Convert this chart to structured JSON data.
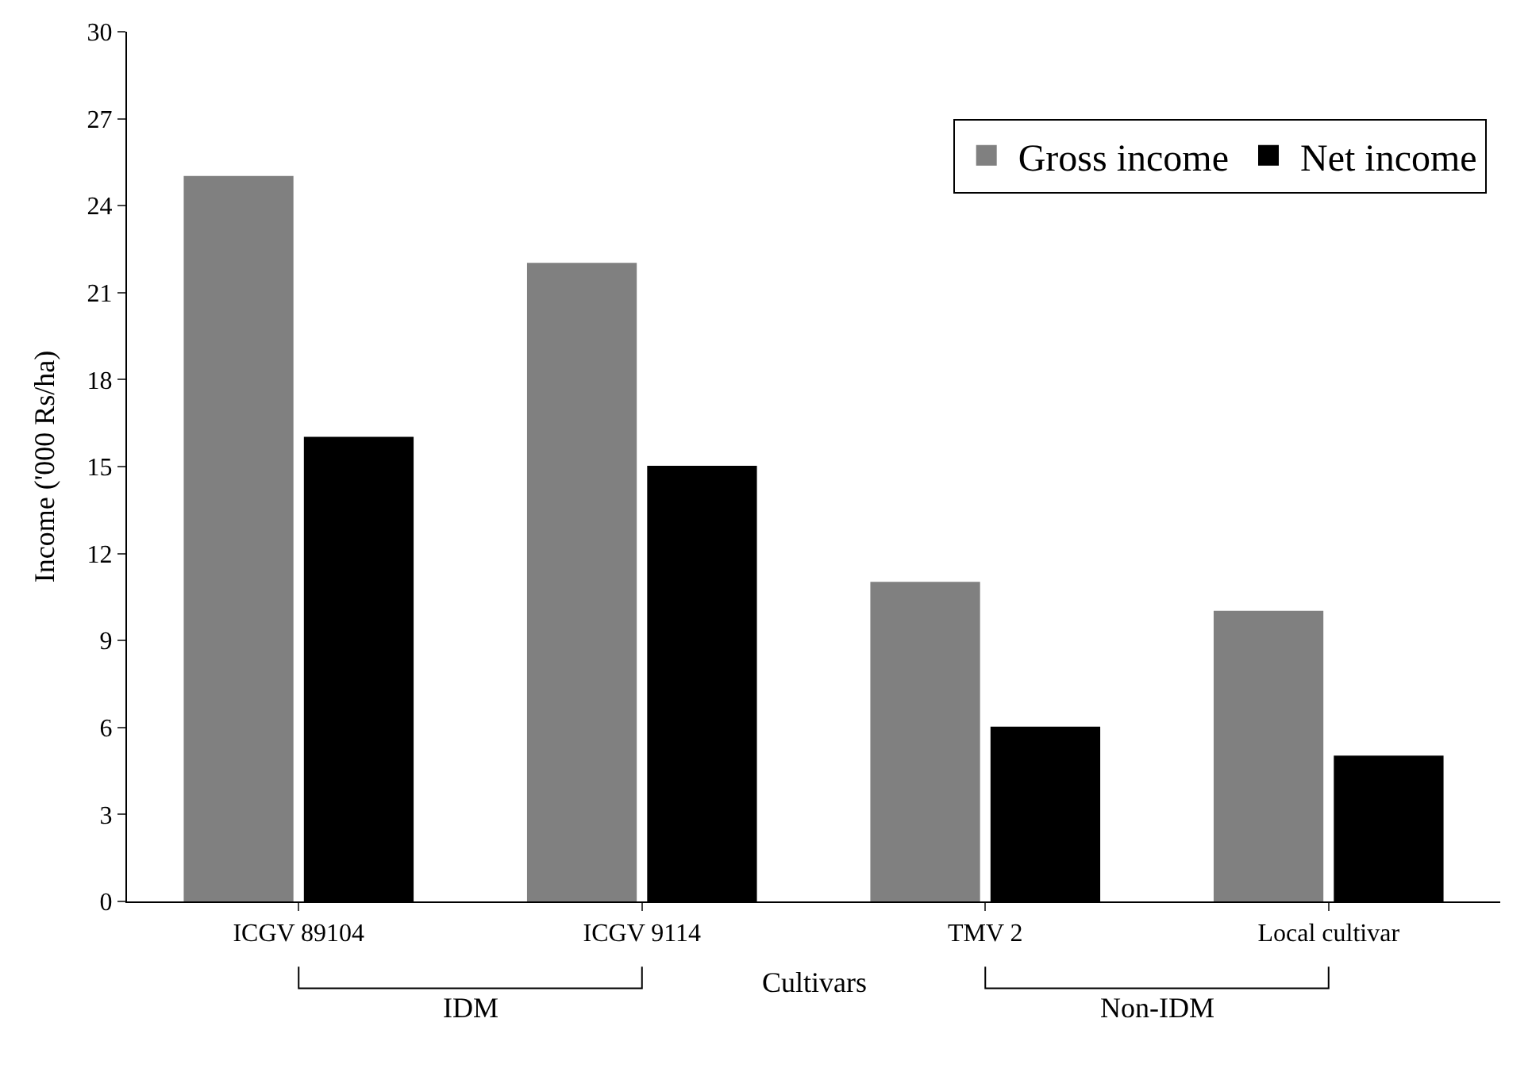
{
  "chart_data": {
    "type": "bar",
    "xlabel": "Cultivars",
    "ylabel": "Income ('000 Rs/ha)",
    "categories": [
      "ICGV 89104",
      "ICGV 9114",
      "TMV 2",
      "Local cultivar"
    ],
    "series": [
      {
        "name": "Gross income",
        "color": "#808080",
        "values": [
          25,
          22,
          11,
          10
        ]
      },
      {
        "name": "Net income",
        "color": "#000000",
        "values": [
          16,
          15,
          6,
          5
        ]
      }
    ],
    "ylim": [
      0,
      30
    ],
    "yticks": [
      0,
      3,
      6,
      9,
      12,
      15,
      18,
      21,
      24,
      27,
      30
    ],
    "annotations": [
      "IDM",
      "Non-IDM"
    ],
    "legend": "top right"
  }
}
